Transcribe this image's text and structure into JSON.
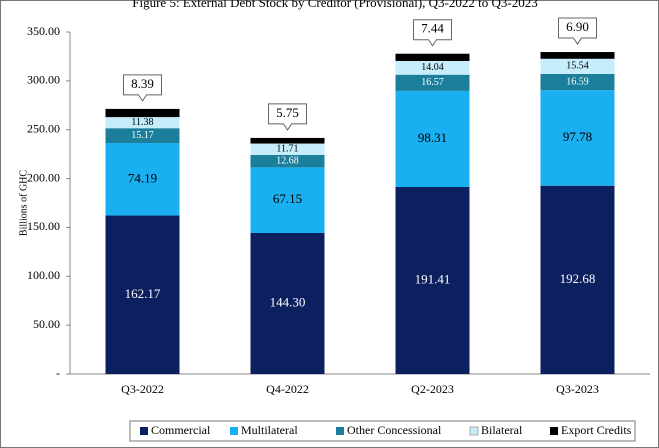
{
  "chart_data": {
    "type": "stacked-bar",
    "title": "Figure 5: External Debt Stock by Creditor (Provisional), Q3-2022 to Q3-2023",
    "y_label": "Billions of GHC",
    "categories": [
      "Q3-2022",
      "Q4-2022",
      "Q2-2023",
      "Q3-2023"
    ],
    "series": [
      {
        "name": "Commercial",
        "color": "#0c1f5e",
        "values": [
          162.17,
          144.3,
          191.41,
          192.68
        ],
        "value_labels": [
          "162.17",
          "144.30",
          "191.41",
          "192.68"
        ]
      },
      {
        "name": "Multilateral",
        "color": "#19aff0",
        "values": [
          74.19,
          67.15,
          98.31,
          97.78
        ],
        "value_labels": [
          "74.19",
          "67.15",
          "98.31",
          "97.78"
        ]
      },
      {
        "name": "Other Concessional",
        "color": "#1b7f9b",
        "values": [
          15.17,
          12.68,
          16.57,
          16.59
        ],
        "value_labels": [
          "15.17",
          "12.68",
          "16.57",
          "16.59"
        ]
      },
      {
        "name": "Bilateral",
        "color": "#c6edfb",
        "values": [
          11.38,
          11.71,
          14.04,
          15.54
        ],
        "value_labels": [
          "11.38",
          "11.71",
          "14.04",
          "15.54"
        ]
      },
      {
        "name": "Export Credits",
        "color": "#000000",
        "values": [
          8.39,
          5.75,
          7.44,
          6.9
        ],
        "value_labels": [
          "8.39",
          "5.75",
          "7.44",
          "6.90"
        ]
      }
    ],
    "ylim": [
      0,
      350
    ],
    "yticks": [
      {
        "value": 0,
        "label": "-"
      },
      {
        "value": 50,
        "label": "50.00"
      },
      {
        "value": 100,
        "label": "100.00"
      },
      {
        "value": 150,
        "label": "150.00"
      },
      {
        "value": 200,
        "label": "200.00"
      },
      {
        "value": 250,
        "label": "250.00"
      },
      {
        "value": 300,
        "label": "300.00"
      },
      {
        "value": 350,
        "label": "350.00"
      }
    ],
    "grid": false,
    "legend": "bottom"
  }
}
